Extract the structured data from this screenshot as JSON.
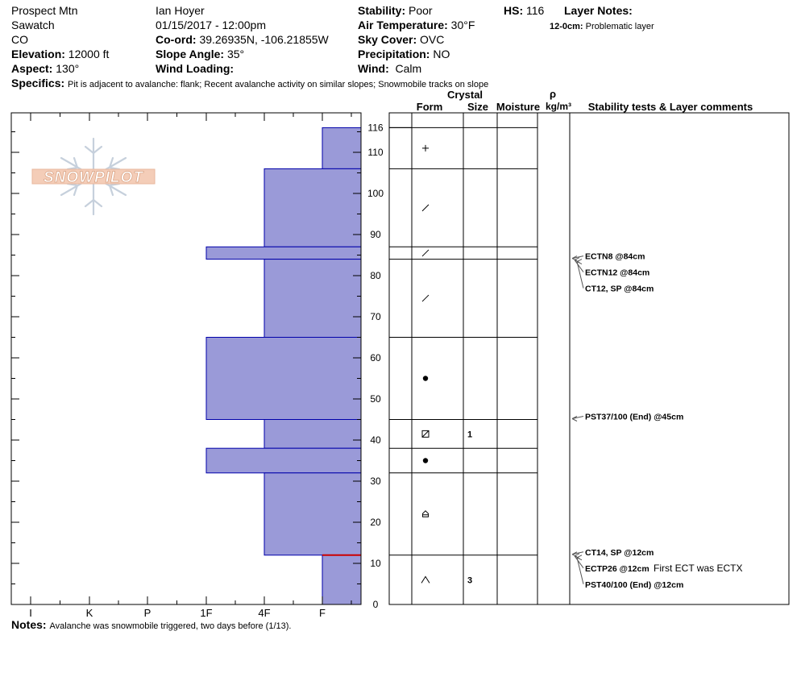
{
  "header": {
    "location": "Prospect Mtn",
    "range": "Sawatch",
    "state": "CO",
    "elevation_label": "Elevation:",
    "elevation": "12000 ft",
    "aspect_label": "Aspect:",
    "aspect": "130°",
    "observer": "Ian Hoyer",
    "datetime": "01/15/2017 - 12:00pm",
    "coord_label": "Co-ord:",
    "coord": "39.26935N, -106.21855W",
    "slope_label": "Slope Angle:",
    "slope": "35°",
    "wind_loading_label": "Wind Loading:",
    "wind_loading": "",
    "stability_label": "Stability:",
    "stability": "Poor",
    "air_temp_label": "Air Temperature:",
    "air_temp": "30°F",
    "sky_label": "Sky Cover:",
    "sky": "OVC",
    "precip_label": "Precipitation:",
    "precip": "NO",
    "wind_label": "Wind:",
    "wind": "Calm",
    "hs_label": "HS:",
    "hs": "116",
    "layer_notes_label": "Layer Notes:",
    "layer_note_range": "12-0cm:",
    "layer_note_text": "Problematic layer",
    "specifics_label": "Specifics:",
    "specifics": "Pit is adjacent to avalanche: flank;  Recent avalanche activity on similar slopes; Snowmobile tracks on slope",
    "notes_label": "Notes:",
    "notes": "Avalanche was snowmobile triggered, two days before (1/13)."
  },
  "logo_text": "SNOWPILOT",
  "columns": {
    "crystal": "Crystal",
    "form": "Form",
    "size": "Size",
    "moisture": "Moisture",
    "rho": "ρ",
    "density_unit": "kg/m³",
    "tests": "Stability tests & Layer comments"
  },
  "chart_data": {
    "type": "bar",
    "title": "",
    "xlabel": "",
    "ylabel": "",
    "ylim": [
      0,
      116
    ],
    "hardness_categories": [
      "I",
      "K",
      "P",
      "1F",
      "4F",
      "F"
    ],
    "y_ticks": [
      0,
      10,
      20,
      30,
      40,
      50,
      60,
      70,
      80,
      90,
      100,
      110,
      116
    ],
    "layers": [
      {
        "top": 116,
        "bottom": 106,
        "hardness": "F",
        "form": "plus",
        "size": ""
      },
      {
        "top": 106,
        "bottom": 87,
        "hardness": "4F",
        "form": "slash",
        "size": ""
      },
      {
        "top": 87,
        "bottom": 84,
        "hardness": "1F",
        "form": "slash",
        "size": ""
      },
      {
        "top": 84,
        "bottom": 65,
        "hardness": "4F",
        "form": "slash",
        "size": ""
      },
      {
        "top": 65,
        "bottom": 45,
        "hardness": "1F",
        "form": "dot",
        "size": ""
      },
      {
        "top": 45,
        "bottom": 38,
        "hardness": "4F",
        "form": "facet",
        "size": "1"
      },
      {
        "top": 38,
        "bottom": 32,
        "hardness": "1F",
        "form": "dot",
        "size": ""
      },
      {
        "top": 32,
        "bottom": 12,
        "hardness": "4F",
        "form": "depth",
        "size": ""
      },
      {
        "top": 12,
        "bottom": 0,
        "hardness": "F",
        "form": "caret",
        "size": "3"
      }
    ],
    "problem_layer_depth": 12,
    "tests": [
      {
        "label": "ECTN8 @84cm",
        "depth": 84,
        "comment": ""
      },
      {
        "label": "ECTN12 @84cm",
        "depth": 84,
        "comment": ""
      },
      {
        "label": "CT12, SP @84cm",
        "depth": 84,
        "comment": ""
      },
      {
        "label": "PST37/100 (End) @45cm",
        "depth": 45,
        "comment": ""
      },
      {
        "label": "CT14, SP @12cm",
        "depth": 12,
        "comment": ""
      },
      {
        "label": "ECTP26 @12cm",
        "depth": 12,
        "comment": "First ECT was ECTX"
      },
      {
        "label": "PST40/100 (End) @12cm",
        "depth": 12,
        "comment": ""
      }
    ],
    "colors": {
      "layer_fill": "#9a9ad8",
      "layer_stroke": "#0000aa",
      "problem": "#cc0000"
    }
  }
}
